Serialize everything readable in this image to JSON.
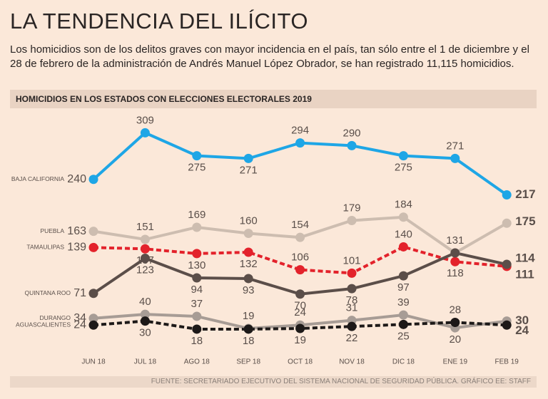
{
  "chart_data": {
    "type": "line",
    "title": "LA TENDENCIA DEL ILÍCITO",
    "subtitle": "Los homicidios son de los delitos graves con mayor incidencia en el país, tan sólo entre el 1 de diciembre y el 28 de febrero de la administración de Andrés Manuel López Obrador, se han registrado 11,115 homicidios.",
    "section_title": "HOMICIDIOS EN LOS ESTADOS CON ELECCIONES ELECTORALES 2019",
    "source": "FUENTE: SECRETARIADO EJECUTIVO DEL SISTEMA NACIONAL DE SEGURIDAD PÚBLICA. GRÁFICO EE: STAFF",
    "categories": [
      "JUN 18",
      "JUL 18",
      "AGO 18",
      "SEP 18",
      "OCT 18",
      "NOV 18",
      "DIC 18",
      "ENE 19",
      "FEB 19"
    ],
    "ylim": [
      0,
      320
    ],
    "series": [
      {
        "name": "BAJA CALIFORNIA",
        "color": "#1ea6e6",
        "style": "solid",
        "values": [
          240,
          309,
          275,
          271,
          294,
          290,
          275,
          271,
          217
        ]
      },
      {
        "name": "PUEBLA",
        "color": "#cdbdb0",
        "style": "solid",
        "values": [
          163,
          151,
          169,
          160,
          154,
          179,
          184,
          131,
          175
        ],
        "value_labels": [
          "163",
          "151",
          "169",
          "160",
          "154",
          "179",
          "184",
          null,
          "175"
        ]
      },
      {
        "name": "TAMAULIPAS",
        "color": "#e3222b",
        "style": "dashed",
        "values": [
          139,
          137,
          130,
          132,
          106,
          101,
          140,
          118,
          111
        ]
      },
      {
        "name": "QUINTANA ROO",
        "color": "#5b4e49",
        "style": "solid",
        "values": [
          71,
          123,
          94,
          93,
          70,
          78,
          97,
          131,
          114
        ]
      },
      {
        "name": "DURANGO",
        "color": "#a79c95",
        "style": "solid",
        "values": [
          34,
          40,
          37,
          19,
          24,
          31,
          39,
          20,
          30
        ]
      },
      {
        "name": "AGUASCALIENTES",
        "color": "#1d1918",
        "style": "dashed",
        "values": [
          24,
          30,
          18,
          18,
          19,
          22,
          25,
          28,
          24
        ]
      }
    ]
  }
}
